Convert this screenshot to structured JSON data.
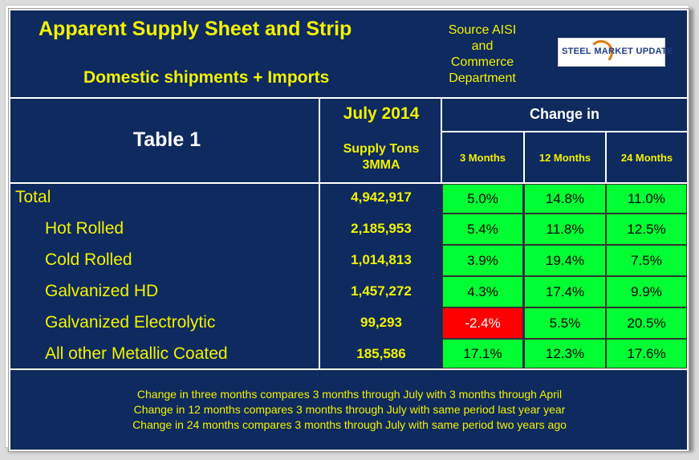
{
  "header": {
    "title": "Apparent Supply Sheet and Strip",
    "subtitle": "Domestic shipments + Imports",
    "source_lines": [
      "Source AISI",
      "and",
      "Commerce",
      "Department"
    ],
    "logo_text_a": "STEEL",
    "logo_text_b": "MARKET UPDATE"
  },
  "table": {
    "label": "Table 1",
    "period": "July 2014",
    "change_header": "Change in",
    "supply_lines": [
      "Supply Tons",
      "3MMA"
    ],
    "columns": [
      "3 Months",
      "12 Months",
      "24 Months"
    ],
    "rows": [
      {
        "label": "Total",
        "value": "4,942,917",
        "changes": [
          "5.0%",
          "14.8%",
          "11.0%"
        ]
      },
      {
        "label": "Hot Rolled",
        "value": "2,185,953",
        "changes": [
          "5.4%",
          "11.8%",
          "12.5%"
        ]
      },
      {
        "label": "Cold Rolled",
        "value": "1,014,813",
        "changes": [
          "3.9%",
          "19.4%",
          "7.5%"
        ]
      },
      {
        "label": "Galvanized HD",
        "value": "1,457,272",
        "changes": [
          "4.3%",
          "17.4%",
          "9.9%"
        ]
      },
      {
        "label": "Galvanized Electrolytic",
        "value": "99,293",
        "changes": [
          "-2.4%",
          "5.5%",
          "20.5%"
        ]
      },
      {
        "label": "All other Metallic Coated",
        "value": "185,586",
        "changes": [
          "17.1%",
          "12.3%",
          "17.6%"
        ]
      }
    ]
  },
  "notes": [
    "Change in three months compares 3 months through July with 3 months through April",
    "Change in 12 months compares 3 months through July with same period last year year",
    "Change in 24 months compares 3 months through July with same period two years ago"
  ],
  "colors": {
    "background": "#0e2a5e",
    "text_accent": "#f2f200",
    "positive_cell": "#00ff33",
    "negative_cell": "#ff0000"
  }
}
